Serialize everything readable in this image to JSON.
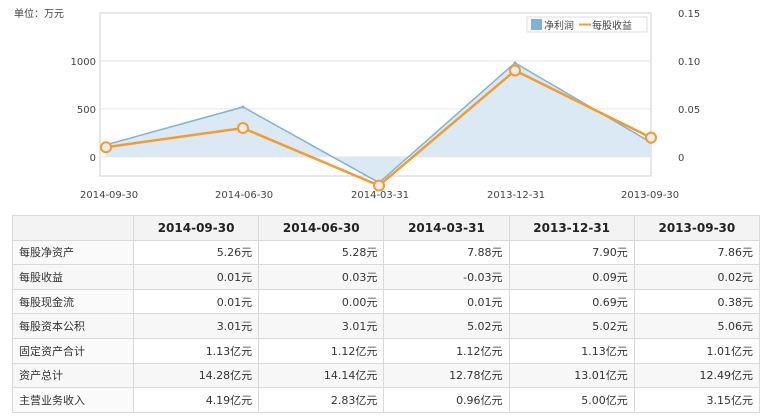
{
  "chart_data": {
    "type": "line",
    "unit_label": "单位：万元",
    "categories": [
      "2014-09-30",
      "2014-06-30",
      "2014-03-31",
      "2013-12-31",
      "2013-09-30"
    ],
    "y_left": {
      "min": -200,
      "max": 1500,
      "ticks": [
        0,
        500,
        1000
      ]
    },
    "y_right": {
      "min": -0.02,
      "max": 0.15,
      "ticks": [
        0,
        0.05,
        0.1,
        0.15
      ],
      "tick_labels": [
        "0",
        "0.05",
        "0.10",
        "0.15"
      ]
    },
    "series": [
      {
        "name": "净利润",
        "axis": "left",
        "style": "area",
        "color": "#7eb3d8",
        "fill": "#dbe9f5",
        "values": [
          125,
          520,
          -270,
          980,
          150
        ]
      },
      {
        "name": "每股收益",
        "axis": "right",
        "style": "line-markers",
        "color": "#f39c2c",
        "values": [
          0.01,
          0.03,
          -0.03,
          0.09,
          0.02
        ]
      }
    ]
  },
  "table": {
    "headers": [
      "2014-09-30",
      "2014-06-30",
      "2014-03-31",
      "2013-12-31",
      "2013-09-30"
    ],
    "rows": [
      {
        "label": "每股净资产",
        "values": [
          "5.26元",
          "5.28元",
          "7.88元",
          "7.90元",
          "7.86元"
        ]
      },
      {
        "label": "每股收益",
        "values": [
          "0.01元",
          "0.03元",
          "-0.03元",
          "0.09元",
          "0.02元"
        ]
      },
      {
        "label": "每股现金流",
        "values": [
          "0.01元",
          "0.00元",
          "0.01元",
          "0.69元",
          "0.38元"
        ]
      },
      {
        "label": "每股资本公积",
        "values": [
          "3.01元",
          "3.01元",
          "5.02元",
          "5.02元",
          "5.06元"
        ]
      },
      {
        "label": "固定资产合计",
        "values": [
          "1.13亿元",
          "1.12亿元",
          "1.12亿元",
          "1.13亿元",
          "1.01亿元"
        ]
      },
      {
        "label": "资产总计",
        "values": [
          "14.28亿元",
          "14.14亿元",
          "12.78亿元",
          "13.01亿元",
          "12.49亿元"
        ]
      },
      {
        "label": "主营业务收入",
        "values": [
          "4.19亿元",
          "2.83亿元",
          "0.96亿元",
          "5.00亿元",
          "3.15亿元"
        ]
      }
    ]
  }
}
